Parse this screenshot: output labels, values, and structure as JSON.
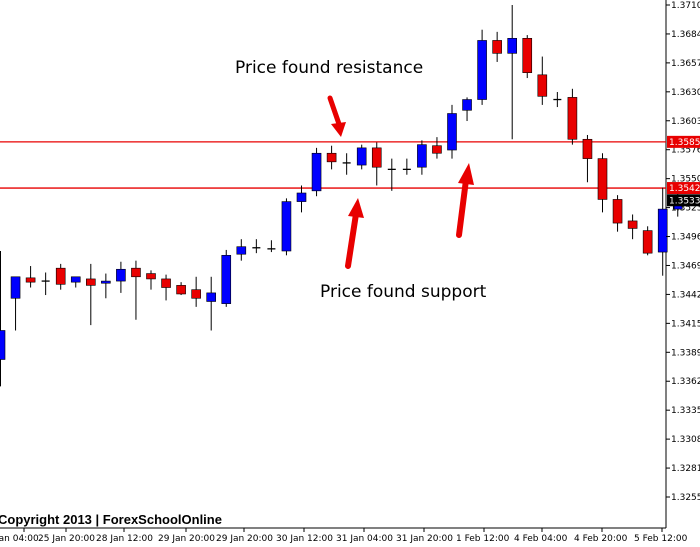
{
  "chart_data": {
    "type": "candlestick",
    "ylim": [
      1.3255,
      1.3713
    ],
    "x_tick_labels": [
      "Jan 04:00",
      "25 Jan 20:00",
      "28 Jan 12:00",
      "29 Jan 20:00",
      "29 Jan 20:00",
      "30 Jan 12:00",
      "31 Jan 04:00",
      "31 Jan 20:00",
      "1 Feb 12:00",
      "4 Feb 04:00",
      "4 Feb 20:00",
      "5 Feb 12:00"
    ],
    "y_tick_labels": [
      "1.37105",
      "1.36840",
      "1.36570",
      "1.36300",
      "1.36035",
      "1.35765",
      "1.35500",
      "1.35230",
      "1.34960",
      "1.34695",
      "1.34425",
      "1.34155",
      "1.33890",
      "1.33620",
      "1.33355",
      "1.33085",
      "1.32815",
      "1.32550"
    ],
    "level_tags": [
      "1.35856",
      "1.35426"
    ],
    "current_price_tag": "1.35334",
    "candles": [
      {
        "o": 1.3383,
        "h": 1.3484,
        "l": 1.3358,
        "c": 1.341
      },
      {
        "o": 1.344,
        "h": 1.346,
        "l": 1.341,
        "c": 1.346
      },
      {
        "o": 1.3459,
        "h": 1.347,
        "l": 1.345,
        "c": 1.3455
      },
      {
        "o": 1.3455,
        "h": 1.3464,
        "l": 1.3443,
        "c": 1.3456
      },
      {
        "o": 1.3468,
        "h": 1.3472,
        "l": 1.3448,
        "c": 1.3453
      },
      {
        "o": 1.3455,
        "h": 1.346,
        "l": 1.345,
        "c": 1.346
      },
      {
        "o": 1.3458,
        "h": 1.3472,
        "l": 1.3415,
        "c": 1.3452
      },
      {
        "o": 1.3454,
        "h": 1.3463,
        "l": 1.344,
        "c": 1.3456
      },
      {
        "o": 1.3456,
        "h": 1.3474,
        "l": 1.3445,
        "c": 1.3467
      },
      {
        "o": 1.3468,
        "h": 1.3475,
        "l": 1.342,
        "c": 1.346
      },
      {
        "o": 1.3463,
        "h": 1.3466,
        "l": 1.3448,
        "c": 1.3458
      },
      {
        "o": 1.3458,
        "h": 1.3462,
        "l": 1.3438,
        "c": 1.345
      },
      {
        "o": 1.3452,
        "h": 1.3455,
        "l": 1.3443,
        "c": 1.3444
      },
      {
        "o": 1.3448,
        "h": 1.346,
        "l": 1.3432,
        "c": 1.344
      },
      {
        "o": 1.3437,
        "h": 1.346,
        "l": 1.341,
        "c": 1.3445
      },
      {
        "o": 1.3435,
        "h": 1.3485,
        "l": 1.3432,
        "c": 1.348
      },
      {
        "o": 1.3481,
        "h": 1.3495,
        "l": 1.3475,
        "c": 1.3488
      },
      {
        "o": 1.3487,
        "h": 1.3495,
        "l": 1.3482,
        "c": 1.3487
      },
      {
        "o": 1.3486,
        "h": 1.3494,
        "l": 1.3483,
        "c": 1.3486
      },
      {
        "o": 1.3484,
        "h": 1.3533,
        "l": 1.348,
        "c": 1.353
      },
      {
        "o": 1.353,
        "h": 1.3545,
        "l": 1.352,
        "c": 1.3538
      },
      {
        "o": 1.354,
        "h": 1.358,
        "l": 1.3535,
        "c": 1.3575
      },
      {
        "o": 1.3575,
        "h": 1.3582,
        "l": 1.356,
        "c": 1.3567
      },
      {
        "o": 1.3566,
        "h": 1.3575,
        "l": 1.3555,
        "c": 1.3565
      },
      {
        "o": 1.3564,
        "h": 1.3583,
        "l": 1.356,
        "c": 1.358
      },
      {
        "o": 1.358,
        "h": 1.3585,
        "l": 1.3545,
        "c": 1.3562
      },
      {
        "o": 1.356,
        "h": 1.357,
        "l": 1.354,
        "c": 1.356
      },
      {
        "o": 1.356,
        "h": 1.357,
        "l": 1.3555,
        "c": 1.356
      },
      {
        "o": 1.3562,
        "h": 1.3587,
        "l": 1.3555,
        "c": 1.3583
      },
      {
        "o": 1.3582,
        "h": 1.359,
        "l": 1.357,
        "c": 1.3575
      },
      {
        "o": 1.3578,
        "h": 1.362,
        "l": 1.357,
        "c": 1.3612
      },
      {
        "o": 1.3615,
        "h": 1.3627,
        "l": 1.3605,
        "c": 1.3625
      },
      {
        "o": 1.3625,
        "h": 1.369,
        "l": 1.362,
        "c": 1.368
      },
      {
        "o": 1.368,
        "h": 1.3688,
        "l": 1.366,
        "c": 1.3668
      },
      {
        "o": 1.3668,
        "h": 1.3713,
        "l": 1.3588,
        "c": 1.3682
      },
      {
        "o": 1.3682,
        "h": 1.3685,
        "l": 1.3645,
        "c": 1.365
      },
      {
        "o": 1.3648,
        "h": 1.3665,
        "l": 1.362,
        "c": 1.3628
      },
      {
        "o": 1.3625,
        "h": 1.3632,
        "l": 1.3618,
        "c": 1.3625
      },
      {
        "o": 1.3627,
        "h": 1.3635,
        "l": 1.3583,
        "c": 1.3588
      },
      {
        "o": 1.3588,
        "h": 1.3592,
        "l": 1.3548,
        "c": 1.357
      },
      {
        "o": 1.357,
        "h": 1.3575,
        "l": 1.352,
        "c": 1.3532
      },
      {
        "o": 1.3532,
        "h": 1.3536,
        "l": 1.3502,
        "c": 1.351
      },
      {
        "o": 1.3512,
        "h": 1.3518,
        "l": 1.3495,
        "c": 1.3505
      },
      {
        "o": 1.3503,
        "h": 1.3507,
        "l": 1.348,
        "c": 1.3482
      },
      {
        "o": 1.3483,
        "h": 1.3543,
        "l": 1.3461,
        "c": 1.3523
      },
      {
        "o": 1.3523,
        "h": 1.3538,
        "l": 1.3516,
        "c": 1.3534
      }
    ],
    "horizontal_levels": [
      1.35856,
      1.35426
    ],
    "colors": {
      "bull": "#0000ff",
      "bear": "#e80000",
      "level": "#e80000",
      "wick": "#000000",
      "current_tag": "#000000"
    }
  },
  "annotations": {
    "resistance": "Price found resistance",
    "support": "Price found support"
  },
  "copyright": "Copyright 2013 | ForexSchoolOnline"
}
